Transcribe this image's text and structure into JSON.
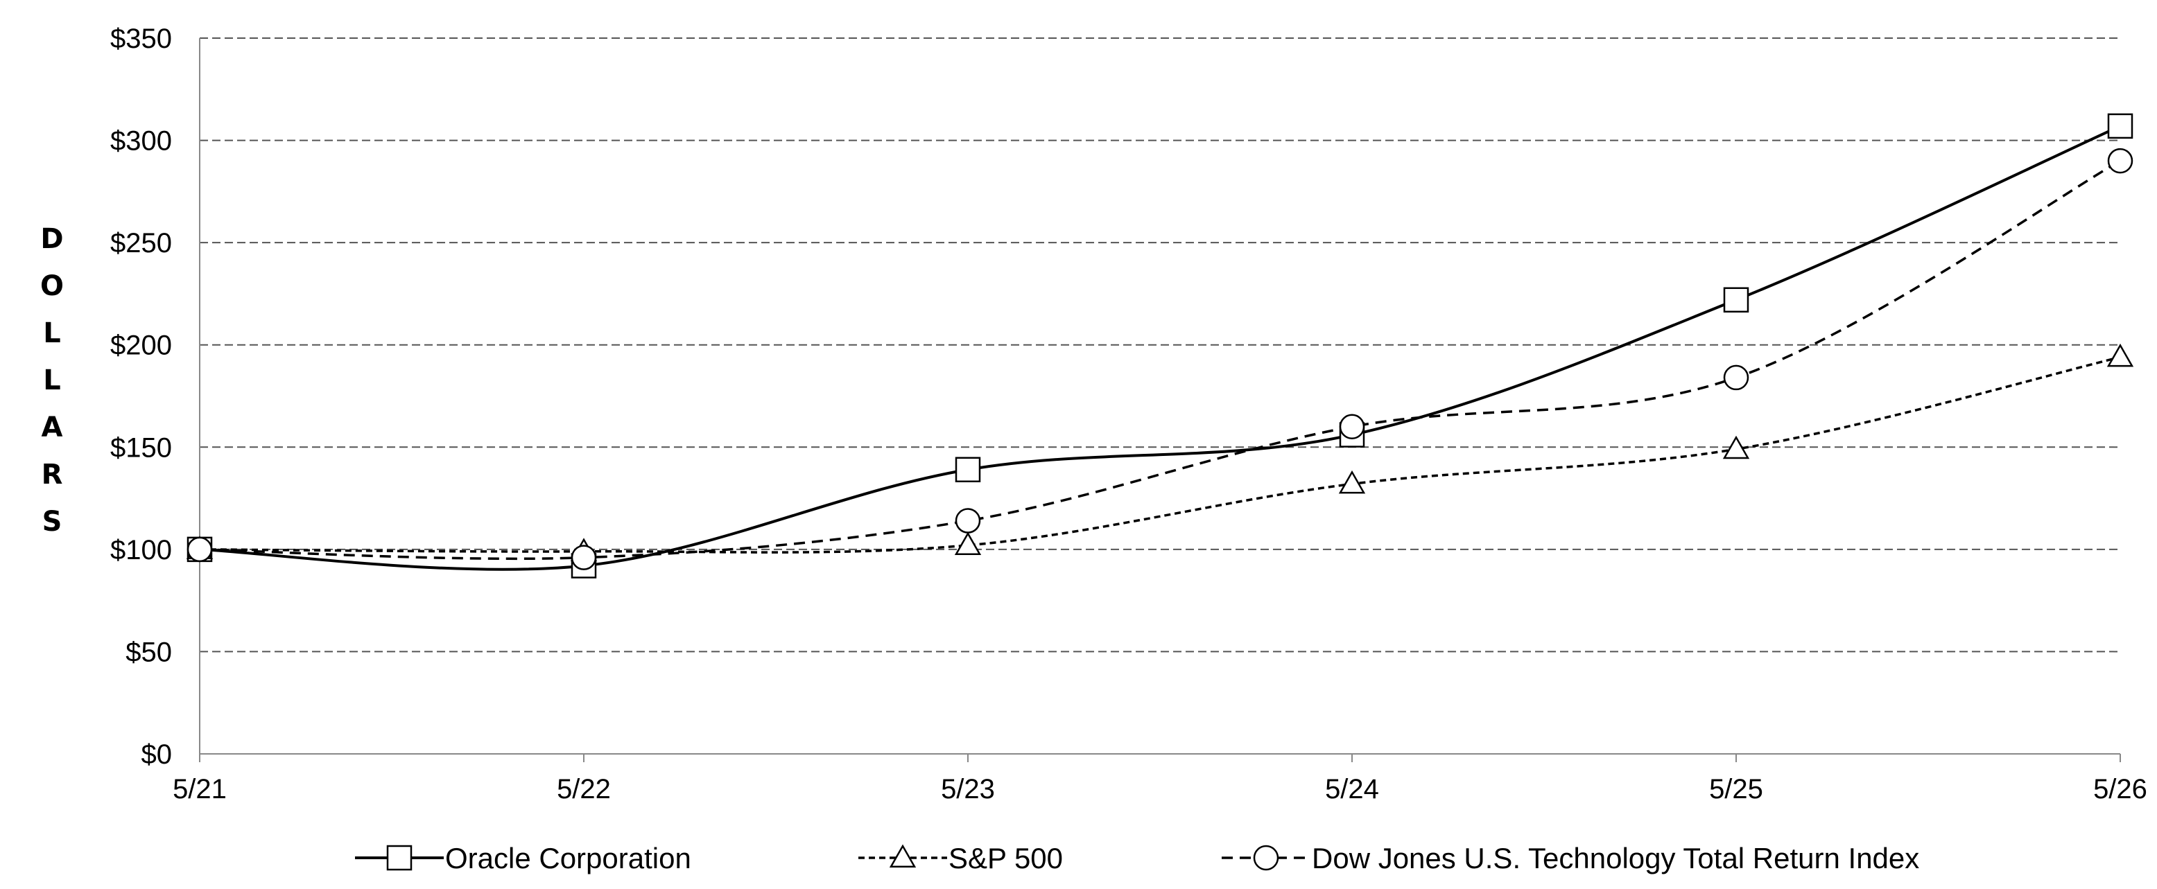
{
  "chart_data": {
    "type": "line",
    "title": "",
    "xlabel": "",
    "ylabel": "DOLLARS",
    "categories": [
      "5/21",
      "5/22",
      "5/23",
      "5/24",
      "5/25",
      "5/26"
    ],
    "y_ticks": [
      "$0",
      "$50",
      "$100",
      "$150",
      "$200",
      "$250",
      "$300",
      "$350"
    ],
    "ylim": [
      0,
      350
    ],
    "grid": true,
    "legend_position": "bottom",
    "series": [
      {
        "name": "Oracle Corporation",
        "values": [
          100,
          92,
          139,
          156,
          222,
          307
        ],
        "marker": "square",
        "dash": "solid"
      },
      {
        "name": "S&P 500",
        "values": [
          100,
          99,
          102,
          132,
          149,
          194
        ],
        "marker": "triangle",
        "dash": "short-dash"
      },
      {
        "name": "Dow Jones U.S. Technology Total Return Index",
        "values": [
          100,
          96,
          114,
          160,
          184,
          290
        ],
        "marker": "circle",
        "dash": "long-dash"
      }
    ]
  }
}
